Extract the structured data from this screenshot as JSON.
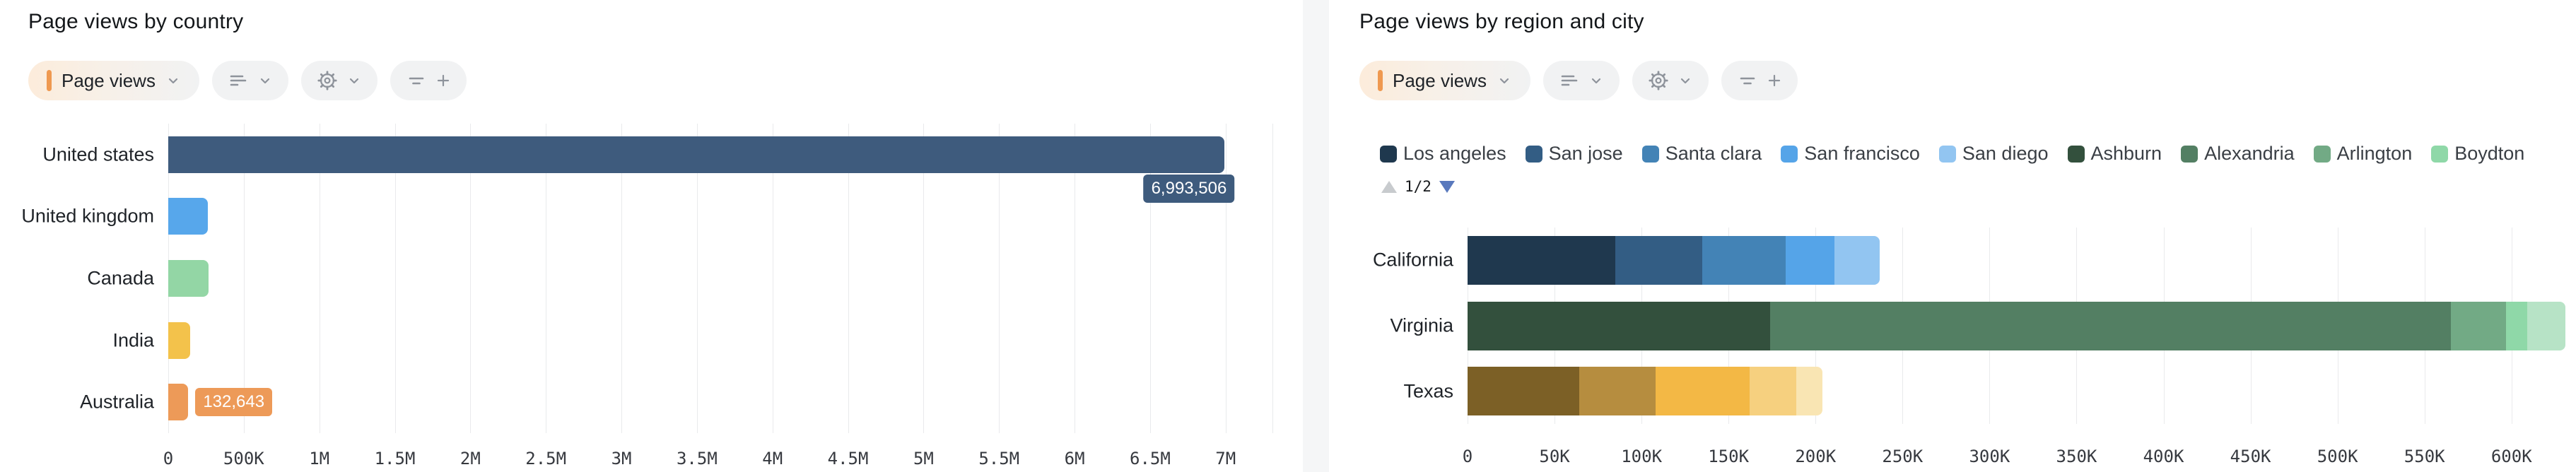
{
  "toolbar": {
    "measure_label": "Page views"
  },
  "theme": {
    "accent_orange": "#ef9950",
    "card_background": "#ffffff",
    "page_gap": "#f5f6f7",
    "gridline": "#e9eaec"
  },
  "chart_data": [
    {
      "type": "bar",
      "title": "Page views by country",
      "categories": [
        "United states",
        "United kingdom",
        "Canada",
        "India",
        "Australia"
      ],
      "values": [
        6993506,
        260000,
        265000,
        145000,
        132643
      ],
      "bar_colors": [
        "#3e5b7d",
        "#57a7eb",
        "#93d6a5",
        "#f3c24b",
        "#ed9a58"
      ],
      "value_labels": [
        {
          "category": "United states",
          "text": "6,993,506",
          "position": "below-end"
        },
        {
          "category": "Australia",
          "text": "132,643",
          "position": "end-right"
        }
      ],
      "xlabel": "",
      "ylabel": "",
      "grid": true,
      "legend": false,
      "edge_gridline": true,
      "xlim": [
        0,
        7310000
      ],
      "x_ticks": {
        "values": [
          0,
          500000,
          1000000,
          1500000,
          2000000,
          2500000,
          3000000,
          3500000,
          4000000,
          4500000,
          5000000,
          5500000,
          6000000,
          6500000,
          7000000
        ],
        "labels": [
          "0",
          "500K",
          "1M",
          "1.5M",
          "2M",
          "2.5M",
          "3M",
          "3.5M",
          "4M",
          "4.5M",
          "5M",
          "5.5M",
          "6M",
          "6.5M",
          "7M"
        ]
      }
    },
    {
      "type": "stacked-bar",
      "title": "Page views by region and city",
      "categories": [
        "California",
        "Virginia",
        "Texas"
      ],
      "rows": [
        {
          "region": "California",
          "segments": [
            {
              "city": "Los angeles",
              "value": 85000,
              "color": "#1f384e"
            },
            {
              "city": "San jose",
              "value": 50000,
              "color": "#335d84"
            },
            {
              "city": "Santa clara",
              "value": 48000,
              "color": "#4383b6"
            },
            {
              "city": "San francisco",
              "value": 28000,
              "color": "#55a4e8"
            },
            {
              "city": "San diego",
              "value": 26000,
              "color": "#92c5f1"
            }
          ]
        },
        {
          "region": "Virginia",
          "segments": [
            {
              "city": "Ashburn",
              "value": 174000,
              "color": "#33503d"
            },
            {
              "city": "Alexandria",
              "value": 391000,
              "color": "#537f63"
            },
            {
              "city": "Arlington",
              "value": 32000,
              "color": "#72aa85"
            },
            {
              "city": "Boydton",
              "value": 12000,
              "color": "#8fd8a8"
            },
            {
              "city": "",
              "value": 22000,
              "color": "#b7e3c6"
            }
          ]
        },
        {
          "region": "Texas",
          "segments": [
            {
              "city": "",
              "value": 64000,
              "color": "#7c6026"
            },
            {
              "city": "",
              "value": 44000,
              "color": "#b68d3f"
            },
            {
              "city": "",
              "value": 54000,
              "color": "#f3b845"
            },
            {
              "city": "",
              "value": 27000,
              "color": "#f6d07f"
            },
            {
              "city": "",
              "value": 15000,
              "color": "#f9e5b3"
            }
          ]
        }
      ],
      "legend": {
        "position": "top",
        "pager": {
          "page_text": "1/2"
        },
        "items": [
          {
            "label": "Los angeles",
            "color": "#1f384e"
          },
          {
            "label": "San jose",
            "color": "#335d84"
          },
          {
            "label": "Santa clara",
            "color": "#4383b6"
          },
          {
            "label": "San francisco",
            "color": "#55a4e8"
          },
          {
            "label": "San diego",
            "color": "#92c5f1"
          },
          {
            "label": "Ashburn",
            "color": "#33503d"
          },
          {
            "label": "Alexandria",
            "color": "#537f63"
          },
          {
            "label": "Arlington",
            "color": "#72aa85"
          },
          {
            "label": "Boydton",
            "color": "#8fd8a8"
          }
        ]
      },
      "xlabel": "",
      "ylabel": "",
      "grid": true,
      "edge_gridline": false,
      "xlim": [
        0,
        633000
      ],
      "x_ticks": {
        "values": [
          0,
          50000,
          100000,
          150000,
          200000,
          250000,
          300000,
          350000,
          400000,
          450000,
          500000,
          550000,
          600000
        ],
        "labels": [
          "0",
          "50K",
          "100K",
          "150K",
          "200K",
          "250K",
          "300K",
          "350K",
          "400K",
          "450K",
          "500K",
          "550K",
          "600K"
        ]
      }
    }
  ]
}
